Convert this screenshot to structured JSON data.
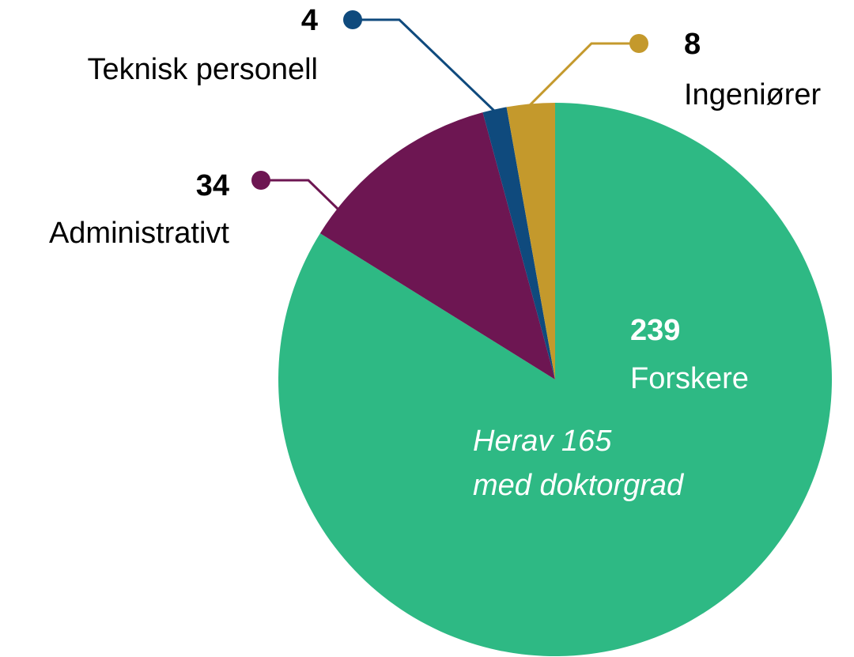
{
  "chart_data": {
    "type": "pie",
    "categories": [
      "Forskere",
      "Administrativt",
      "Teknisk personell",
      "Ingeniører"
    ],
    "values": [
      239,
      34,
      4,
      8
    ],
    "colors": [
      "#2eb984",
      "#6d1652",
      "#0f4a7d",
      "#c4992c"
    ],
    "annotation": [
      "Herav 165",
      "med doktorgrad"
    ]
  }
}
